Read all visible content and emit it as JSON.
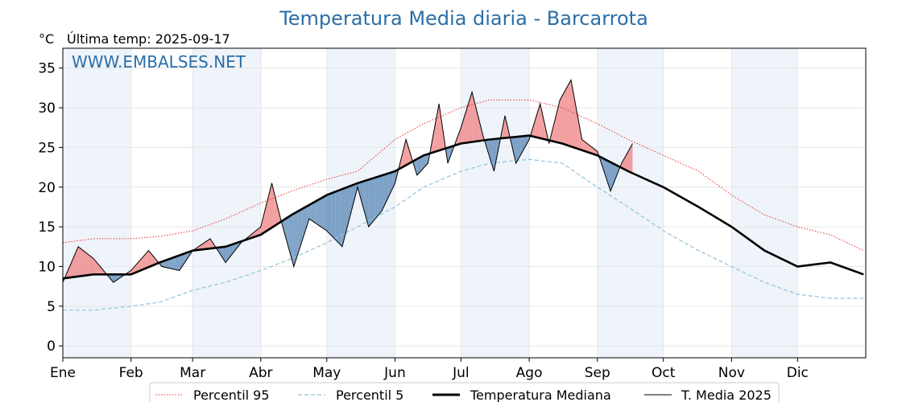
{
  "chart_data": {
    "type": "line",
    "title": "Temperatura Media diaria - Barcarrota",
    "unit_label": "°C",
    "subtitle": "Última temp: 2025-09-17",
    "watermark": "WWW.EMBALSES.NET",
    "ylim": [
      -1.5,
      37.5
    ],
    "yticks": [
      0,
      5,
      10,
      15,
      20,
      25,
      30,
      35
    ],
    "month_labels": [
      "Ene",
      "Feb",
      "Mar",
      "Abr",
      "May",
      "Jun",
      "Jul",
      "Ago",
      "Sep",
      "Oct",
      "Nov",
      "Dic"
    ],
    "month_start_days": [
      1,
      32,
      60,
      91,
      121,
      152,
      182,
      213,
      244,
      274,
      305,
      335
    ],
    "days_in_year": 365,
    "grid": true,
    "legend_position": "bottom",
    "colors": {
      "p95": "#e8312f",
      "p5": "#8fc3dc",
      "median": "#000000",
      "t2025": "#000000",
      "above": "#ef7f7f",
      "below": "#5585b5",
      "band": "#eef4fa"
    },
    "series": [
      {
        "name": "Percentil 95",
        "style": "dotted",
        "x": [
          1,
          15,
          32,
          45,
          60,
          75,
          91,
          105,
          121,
          135,
          152,
          165,
          182,
          195,
          213,
          228,
          244,
          258,
          274,
          290,
          305,
          320,
          335,
          350,
          365
        ],
        "values": [
          13.0,
          13.5,
          13.5,
          13.8,
          14.5,
          16.0,
          18.0,
          19.5,
          21.0,
          22.0,
          26.0,
          28.0,
          30.0,
          31.0,
          31.0,
          30.0,
          28.0,
          26.0,
          24.0,
          22.0,
          19.0,
          16.5,
          15.0,
          14.0,
          12.0
        ]
      },
      {
        "name": "Percentil 5",
        "style": "dashed",
        "x": [
          1,
          15,
          32,
          45,
          60,
          75,
          91,
          105,
          121,
          135,
          152,
          165,
          182,
          195,
          213,
          228,
          244,
          258,
          274,
          290,
          305,
          320,
          335,
          350,
          365
        ],
        "values": [
          4.5,
          4.5,
          5.0,
          5.5,
          7.0,
          8.0,
          9.5,
          11.0,
          13.0,
          15.0,
          17.5,
          20.0,
          22.0,
          23.0,
          23.5,
          23.0,
          20.0,
          17.5,
          14.5,
          12.0,
          10.0,
          8.0,
          6.5,
          6.0,
          6.0
        ]
      },
      {
        "name": "Temperatura Mediana",
        "style": "solid-bold",
        "x": [
          1,
          15,
          32,
          45,
          60,
          75,
          91,
          105,
          121,
          135,
          152,
          165,
          182,
          195,
          213,
          228,
          244,
          258,
          274,
          290,
          305,
          320,
          335,
          350,
          365
        ],
        "values": [
          8.5,
          9.0,
          9.0,
          10.5,
          12.0,
          12.5,
          14.0,
          16.5,
          19.0,
          20.5,
          22.0,
          24.0,
          25.5,
          26.0,
          26.5,
          25.5,
          24.0,
          22.0,
          20.0,
          17.5,
          15.0,
          12.0,
          10.0,
          10.5,
          9.0
        ]
      },
      {
        "name": "T. Media 2025",
        "style": "solid",
        "x": [
          1,
          8,
          15,
          24,
          32,
          40,
          46,
          54,
          60,
          68,
          75,
          82,
          91,
          96,
          100,
          106,
          113,
          121,
          128,
          135,
          140,
          146,
          152,
          157,
          162,
          167,
          172,
          176,
          182,
          187,
          192,
          197,
          202,
          207,
          213,
          218,
          222,
          227,
          232,
          237,
          244,
          250,
          255,
          260
        ],
        "values": [
          8.0,
          12.5,
          11.0,
          8.0,
          9.5,
          12.0,
          10.0,
          9.5,
          12.0,
          13.5,
          10.5,
          13.0,
          15.0,
          20.5,
          16.0,
          10.0,
          16.0,
          14.5,
          12.5,
          20.0,
          15.0,
          17.0,
          20.5,
          26.0,
          21.5,
          23.0,
          30.5,
          23.0,
          27.5,
          32.0,
          26.5,
          22.0,
          29.0,
          23.0,
          26.0,
          30.5,
          25.5,
          31.0,
          33.5,
          26.0,
          24.5,
          19.5,
          23.0,
          25.5
        ]
      }
    ]
  }
}
